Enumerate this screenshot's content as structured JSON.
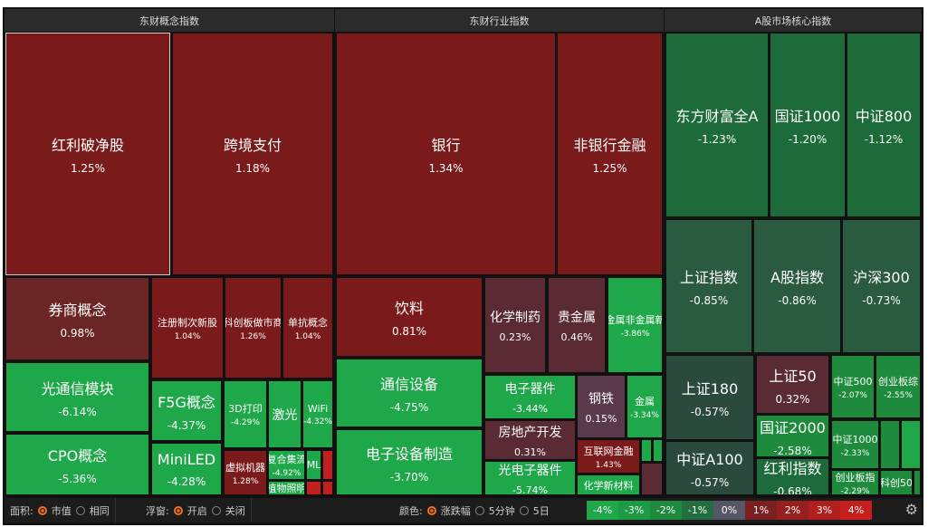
{
  "panels": [
    {
      "title": "东财概念指数"
    },
    {
      "title": "东财行业指数"
    },
    {
      "title": "A股市场核心指数"
    }
  ],
  "tiles": [
    {
      "name": "红利破净股",
      "pct": "1.25%"
    },
    {
      "name": "跨境支付",
      "pct": "1.18%"
    },
    {
      "name": "券商概念",
      "pct": "0.98%"
    },
    {
      "name": "注册制次新股",
      "pct": "1.04%"
    },
    {
      "name": "科创板做市商",
      "pct": "1.26%"
    },
    {
      "name": "单抗概念",
      "pct": "1.04%"
    },
    {
      "name": "光通信模块",
      "pct": "-6.14%"
    },
    {
      "name": "CPO概念",
      "pct": "-5.36%"
    },
    {
      "name": "F5G概念",
      "pct": "-4.37%"
    },
    {
      "name": "MiniLED",
      "pct": "-4.28%"
    },
    {
      "name": "3D打印",
      "pct": "-4.29%"
    },
    {
      "name": "激光",
      "pct": ""
    },
    {
      "name": "WiFi",
      "pct": "-4.32%"
    },
    {
      "name": "虚拟机器",
      "pct": "1.28%"
    },
    {
      "name": "复合集流",
      "pct": "-4.92%"
    },
    {
      "name": "ML",
      "pct": ""
    },
    {
      "name": "植物照明",
      "pct": ""
    },
    {
      "name": "银行",
      "pct": "1.34%"
    },
    {
      "name": "非银行金融",
      "pct": "1.25%"
    },
    {
      "name": "饮料",
      "pct": "0.81%"
    },
    {
      "name": "化学制药",
      "pct": "0.23%"
    },
    {
      "name": "贵金属",
      "pct": "0.46%"
    },
    {
      "name": "金属非金属新",
      "pct": "-3.86%"
    },
    {
      "name": "通信设备",
      "pct": "-4.75%"
    },
    {
      "name": "电子设备制造",
      "pct": "-3.70%"
    },
    {
      "name": "电子器件",
      "pct": "-3.44%"
    },
    {
      "name": "房地产开发",
      "pct": "0.31%"
    },
    {
      "name": "光电子器件",
      "pct": "-5.74%"
    },
    {
      "name": "钢铁",
      "pct": "0.15%"
    },
    {
      "name": "金属",
      "pct": "-3.34%"
    },
    {
      "name": "互联网金融",
      "pct": "1.43%"
    },
    {
      "name": "化学新材料",
      "pct": ""
    },
    {
      "name": "东方财富全A",
      "pct": "-1.23%"
    },
    {
      "name": "国证1000",
      "pct": "-1.20%"
    },
    {
      "name": "中证800",
      "pct": "-1.12%"
    },
    {
      "name": "上证指数",
      "pct": "-0.85%"
    },
    {
      "name": "A股指数",
      "pct": "-0.86%"
    },
    {
      "name": "沪深300",
      "pct": "-0.73%"
    },
    {
      "name": "上证180",
      "pct": "-0.57%"
    },
    {
      "name": "中证A100",
      "pct": "-0.57%"
    },
    {
      "name": "上证50",
      "pct": "0.32%"
    },
    {
      "name": "国证2000",
      "pct": "-2.58%"
    },
    {
      "name": "红利指数",
      "pct": "-0.68%"
    },
    {
      "name": "中证500",
      "pct": "-2.07%"
    },
    {
      "name": "创业板综",
      "pct": "-2.55%"
    },
    {
      "name": "中证1000",
      "pct": "-2.33%"
    },
    {
      "name": "创业板指",
      "pct": "-2.29%"
    },
    {
      "name": "科创50",
      "pct": ""
    }
  ],
  "bar": {
    "area_label": "面积:",
    "area_opts": [
      "市值",
      "相同"
    ],
    "float_label": "浮窗:",
    "float_opts": [
      "开启",
      "关闭"
    ],
    "color_label": "颜色:",
    "color_opts": [
      "涨跌幅",
      "5分钟",
      "5日"
    ],
    "legend": [
      "-4%",
      "-3%",
      "-2%",
      "-1%",
      "0%",
      "1%",
      "2%",
      "3%",
      "4%"
    ],
    "legend_colors": [
      "#1fa84a",
      "#1d9a44",
      "#1e8a3e",
      "#236e3e",
      "#555566",
      "#7a2020",
      "#962020",
      "#b01e1e",
      "#c81e1e"
    ]
  }
}
